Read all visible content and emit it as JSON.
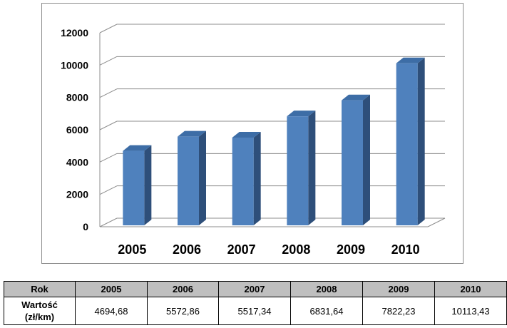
{
  "chart_data": {
    "type": "bar",
    "categories": [
      "2005",
      "2006",
      "2007",
      "2008",
      "2009",
      "2010"
    ],
    "values": [
      4694.68,
      5572.86,
      5517.34,
      6831.64,
      7822.23,
      10113.43
    ],
    "title": "",
    "xlabel": "",
    "ylabel": "",
    "ylim": [
      0,
      12000
    ],
    "yticks": [
      "0",
      "2000",
      "4000",
      "6000",
      "8000",
      "10000",
      "12000"
    ],
    "grid": true,
    "legend": "none",
    "three_d": true,
    "colors": {
      "bar_front": "#4f81bd",
      "bar_side": "#2e4f7a",
      "bar_top": "#3d6da6",
      "grid": "#8c8c8c"
    }
  },
  "table": {
    "header_label": "Rok",
    "row_label": "Wartość\n(zł/km)",
    "years": [
      "2005",
      "2006",
      "2007",
      "2008",
      "2009",
      "2010"
    ],
    "values": [
      "4694,68",
      "5572,86",
      "5517,34",
      "6831,64",
      "7822,23",
      "10113,43"
    ]
  }
}
